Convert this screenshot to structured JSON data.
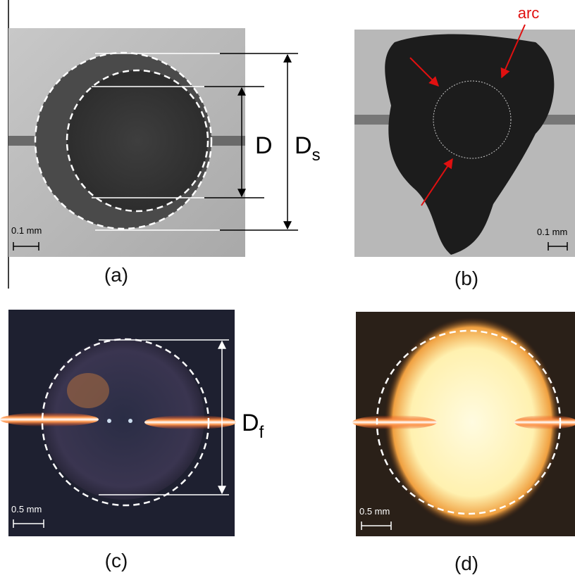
{
  "panels": [
    {
      "label": "(a)",
      "scale": "0.1 mm",
      "inner_diameter": "D",
      "outer_diameter": {
        "main": "D",
        "sub": "s"
      }
    },
    {
      "label": "(b)",
      "scale": "0.1 mm",
      "annotation": "arc"
    },
    {
      "label": "(c)",
      "scale": "0.5 mm",
      "diameter": {
        "main": "D",
        "sub": "f"
      }
    },
    {
      "label": "(d)",
      "scale": "0.5 mm"
    }
  ]
}
